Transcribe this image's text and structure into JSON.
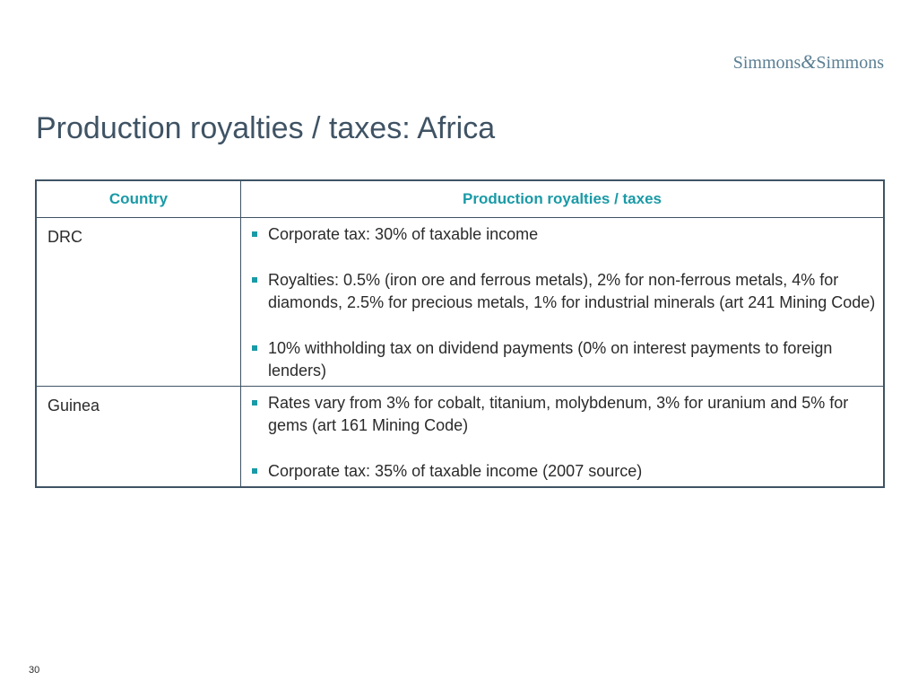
{
  "logo": {
    "left": "Simmons",
    "amp": "&",
    "right": "Simmons"
  },
  "title": "Production royalties / taxes: Africa",
  "table": {
    "headers": [
      "Country",
      "Production royalties / taxes"
    ],
    "rows": [
      {
        "country": "DRC",
        "items": [
          "Corporate tax: 30% of taxable income",
          "Royalties: 0.5% (iron ore and ferrous metals), 2% for non-ferrous metals, 4% for diamonds, 2.5% for precious metals, 1% for industrial minerals (art 241 Mining Code)",
          "10% withholding tax on dividend payments (0% on interest payments to foreign lenders)"
        ]
      },
      {
        "country": "Guinea",
        "items": [
          "Rates vary from 3% for cobalt, titanium, molybdenum, 3% for uranium and 5% for gems (art 161 Mining Code)",
          "Corporate tax: 35% of taxable income (2007 source)"
        ]
      }
    ]
  },
  "page_number": "30",
  "colors": {
    "title": "#3f5364",
    "header_text": "#1a9aa6",
    "bullet": "#1a9aa6",
    "border": "#3f5364",
    "logo": "#5b7f93"
  }
}
